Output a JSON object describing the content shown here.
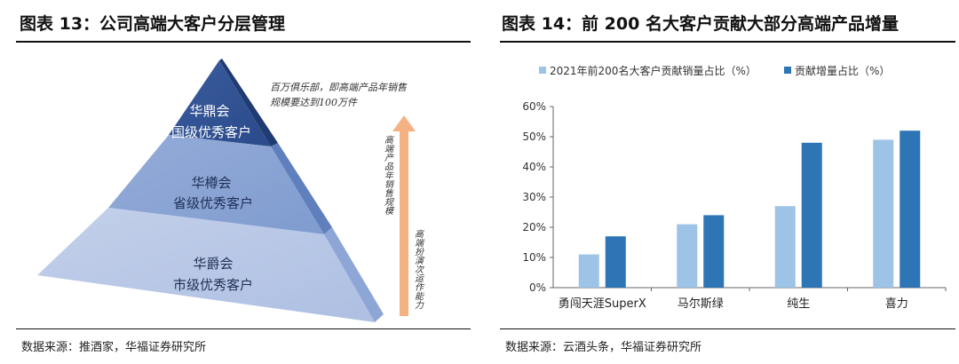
{
  "figure13": {
    "title": "图表 13：公司高端大客户分层管理",
    "source": "数据来源：推酒家，华福证券研究所",
    "tiers": [
      {
        "name": "华鼎会",
        "level": "国级优秀客户"
      },
      {
        "name": "华樽会",
        "level": "省级优秀客户"
      },
      {
        "name": "华爵会",
        "level": "市级优秀客户"
      }
    ],
    "top_note_line1": "百万俱乐部，即高端产品年销售",
    "top_note_line2": "规模要达到100万件",
    "arrow_label": "高端产品年销售规模",
    "side_label": "高端扮演次运作能力"
  },
  "figure14": {
    "title": "图表 14：前 200 名大客户贡献大部分高端产品增量",
    "source": "数据来源：云酒头条，华福证券研究所",
    "colors": {
      "series1": "#9dc3e6",
      "series2": "#2e75b6"
    }
  },
  "chart_data": {
    "type": "bar",
    "categories": [
      "勇闯天涯SuperX",
      "马尔斯绿",
      "纯生",
      "喜力"
    ],
    "series": [
      {
        "name": "2021年前200名大客户贡献销量占比（%）",
        "values": [
          11,
          21,
          27,
          49
        ]
      },
      {
        "name": "贡献增量占比（%）",
        "values": [
          17,
          24,
          48,
          52
        ]
      }
    ],
    "ylim": [
      0,
      60
    ],
    "yticks": [
      "0%",
      "10%",
      "20%",
      "30%",
      "40%",
      "50%",
      "60%"
    ],
    "legend": "top",
    "grid": false
  }
}
